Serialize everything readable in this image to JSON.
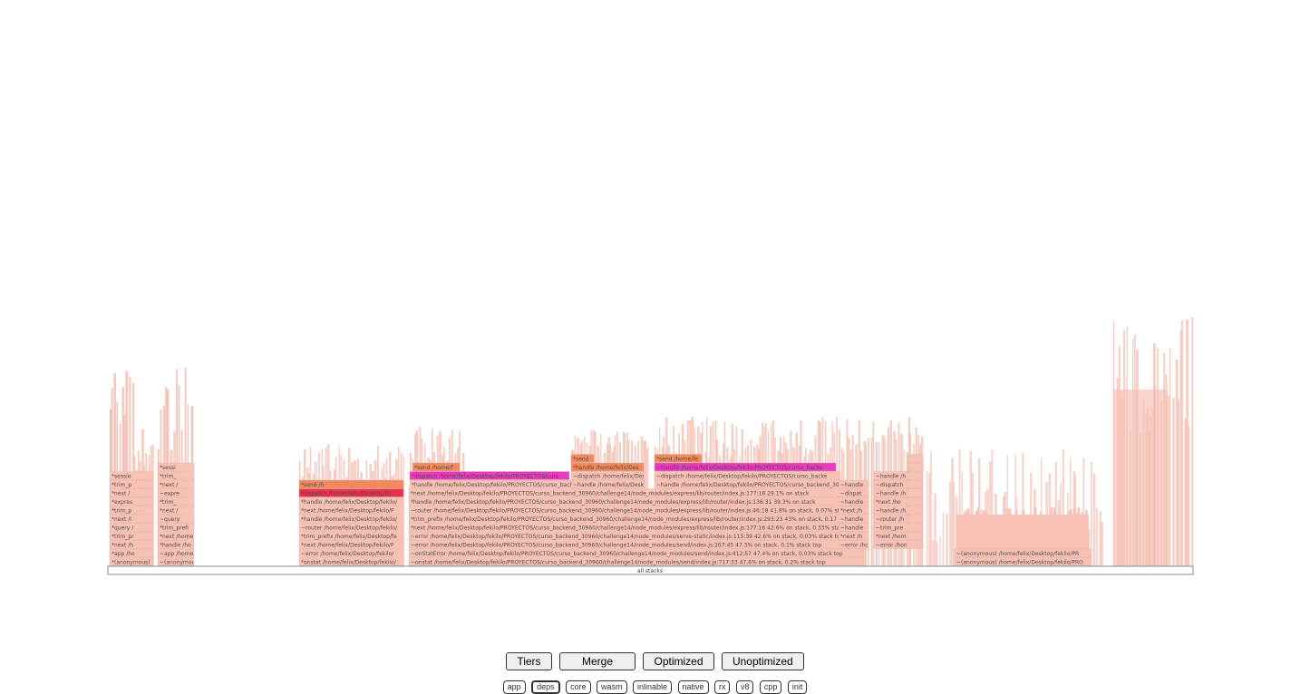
{
  "flamegraph": {
    "root_label": "all stacks",
    "colors": {
      "base": "#f6c2b6",
      "base_stroke": "#e7a797",
      "orange": "#f08a5d",
      "hot_red": "#e8304f",
      "magenta": "#e83bc2"
    },
    "stacks": [
      {
        "labels": [
          "*(anonymous)",
          "*app /ho",
          "*next /h",
          "*trim_pr",
          "*query /",
          "*next /l",
          "*trim_p",
          "*expres",
          "*next /",
          "*trim_p",
          "*sessio"
        ]
      },
      {
        "labels": [
          "~(anonymou",
          "~app /home",
          "*handle /ho",
          "*next /home",
          "*trim_prefi",
          "~query",
          "*next /",
          "*trim_",
          "~expre",
          "*next /",
          "*trim_",
          "*sessi"
        ]
      },
      {
        "labels": [
          "*onstat /home/felix/Desktop/fekilo/",
          "~error /home/felix/Desktop/fekilo/",
          "*next /home/felix/Desktop/fekilo/P",
          "*trim_prefix /home/felix/Desktop/fe",
          "~router /home/felix/Desktop/fekilo/",
          "*handle /home/felix/Desktop/fekilo/",
          "*next /home/felix/Desktop/fekilo/P",
          "*handle /home/felix/Desktop/fekilo/",
          "*dispatch /home/felix/Desktop/fe",
          "*send /h"
        ]
      },
      {
        "labels": [
          "~onstat /home/felix/Desktop/fekilo/PROYECTOS/curso_backend_30960/challenge14/node_modules/send/index.js:717:33 47.6% on stack, 0.2% stack top",
          "~onStatError /home/felix/Desktop/fekilo/PROYECTOS/curso_backend_30960/challenge14/node_modules/send/index.js:412:57 47.4% on stack, 0.03% stack top",
          "~error /home/felix/Desktop/fekilo/PROYECTOS/curso_backend_30960/challenge14/node_modules/send/index.js:267:45 47.3% on stack, 0.1% stack top",
          "~error /home/felix/Desktop/fekilo/PROYECTOS/curso_backend_30960/challenge14/node_modules/serve-static/index.js:115:39 42.6% on stack, 0.03% stack top",
          "*next /home/felix/Desktop/fekilo/PROYECTOS/curso_backend_30960/challenge14/node_modules/express/lib/router/index.js:177:16 42.6% on stack, 0.33% stack top",
          "*trim_prefix /home/felix/Desktop/fekilo/PROYECTOS/curso_backend_30960/challenge14/node_modules/express/lib/router/index.js:293:23 43% on stack, 0.17",
          "~router /home/felix/Desktop/fekilo/PROYECTOS/curso_backend_30960/challenge14/node_modules/express/lib/router/index.js:46:18 41.8% on stack, 0.07% st",
          "*handle /home/felix/Desktop/fekilo/PROYECTOS/curso_backend_30960/challenge14/node_modules/express/lib/router/index.js:136:31 39.3% on stack",
          "*next /home/felix/Desktop/fekilo/PROYECTOS/curso_backend_30960/challenge14/node_modules/express/lib/router/index.js:177:16 29.1% on stack"
        ]
      },
      {
        "labels": [
          "~(anonymous) /home/felix/Desktop/fekilo/PRO",
          "~(anonymous) /home/felix/Desktop/fekilo/PR"
        ]
      }
    ],
    "sub_frames": [
      {
        "label": "*handle /home/felix/Desktop/fekilo/PROYECTOS/curso_backend_30960/challe"
      },
      {
        "label": "*dispatch /home/felix/Desktop/fekilo/PROYECTOS/curs"
      },
      {
        "label": "*send /home/f"
      },
      {
        "label": "~handle /home/felix/Desktop/fekilo/PROYECTOS/curso_backend_30960/challe"
      },
      {
        "label": "~dispatch /home/felix/Desktop/D"
      },
      {
        "label": "*handle /home/felix/Des"
      },
      {
        "label": "*send"
      },
      {
        "label": "~handle /home/felix/Desktop/fekilo/PROYECTOS/curso_backend_30960/challe"
      },
      {
        "label": "~dispatch /home/felix/Desktop/fekilo/PROYECTOS/curso_backe"
      },
      {
        "label": "~handle /home/felix/Desktop/fekilo/PROYECTOS/curso_backe"
      },
      {
        "label": "*send /home/fe"
      },
      {
        "labels": [
          "~error /home/f",
          "*next /h",
          "~handle",
          "~handle",
          "*next /h",
          "~handle",
          "~dispat",
          "~handle"
        ]
      },
      {
        "labels": [
          "~error /home/fe",
          "*next /hom",
          "~trim_pre",
          "~router /h",
          "~handle /h",
          "*next /ho",
          "~handle /h",
          "~dispatch",
          "~handle /h"
        ]
      }
    ]
  },
  "toolbar": {
    "buttons": [
      "Tiers",
      "Merge",
      "Optimized",
      "Unoptimized"
    ]
  },
  "filters": {
    "buttons": [
      "app",
      "deps",
      "core",
      "wasm",
      "inlinable",
      "native",
      "rx",
      "v8",
      "cpp",
      "init"
    ],
    "active": "deps"
  }
}
